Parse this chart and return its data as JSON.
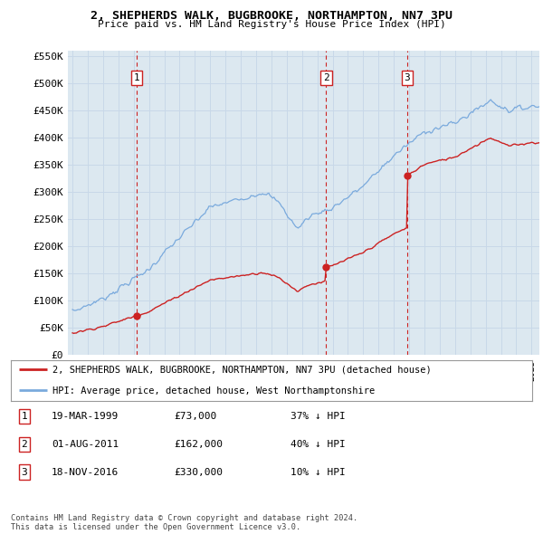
{
  "title": "2, SHEPHERDS WALK, BUGBROOKE, NORTHAMPTON, NN7 3PU",
  "subtitle": "Price paid vs. HM Land Registry's House Price Index (HPI)",
  "ylim": [
    0,
    560000
  ],
  "yticks": [
    0,
    50000,
    100000,
    150000,
    200000,
    250000,
    300000,
    350000,
    400000,
    450000,
    500000,
    550000
  ],
  "ytick_labels": [
    "£0",
    "£50K",
    "£100K",
    "£150K",
    "£200K",
    "£250K",
    "£300K",
    "£350K",
    "£400K",
    "£450K",
    "£500K",
    "£550K"
  ],
  "sales": [
    {
      "date_num": 1999.21,
      "price": 73000,
      "label": "1"
    },
    {
      "date_num": 2011.58,
      "price": 162000,
      "label": "2"
    },
    {
      "date_num": 2016.88,
      "price": 330000,
      "label": "3"
    }
  ],
  "sale_vlines": [
    1999.21,
    2011.58,
    2016.88
  ],
  "property_label": "2, SHEPHERDS WALK, BUGBROOKE, NORTHAMPTON, NN7 3PU (detached house)",
  "hpi_label": "HPI: Average price, detached house, West Northamptonshire",
  "table_rows": [
    {
      "num": "1",
      "date": "19-MAR-1999",
      "price": "£73,000",
      "hpi": "37% ↓ HPI"
    },
    {
      "num": "2",
      "date": "01-AUG-2011",
      "price": "£162,000",
      "hpi": "40% ↓ HPI"
    },
    {
      "num": "3",
      "date": "18-NOV-2016",
      "price": "£330,000",
      "hpi": "10% ↓ HPI"
    }
  ],
  "footnote": "Contains HM Land Registry data © Crown copyright and database right 2024.\nThis data is licensed under the Open Government Licence v3.0.",
  "property_color": "#cc2222",
  "hpi_color": "#7aaadd",
  "vline_color": "#cc2222",
  "grid_color": "#c8d8e8",
  "bg_color": "#dce8f0",
  "background_color": "#ffffff"
}
